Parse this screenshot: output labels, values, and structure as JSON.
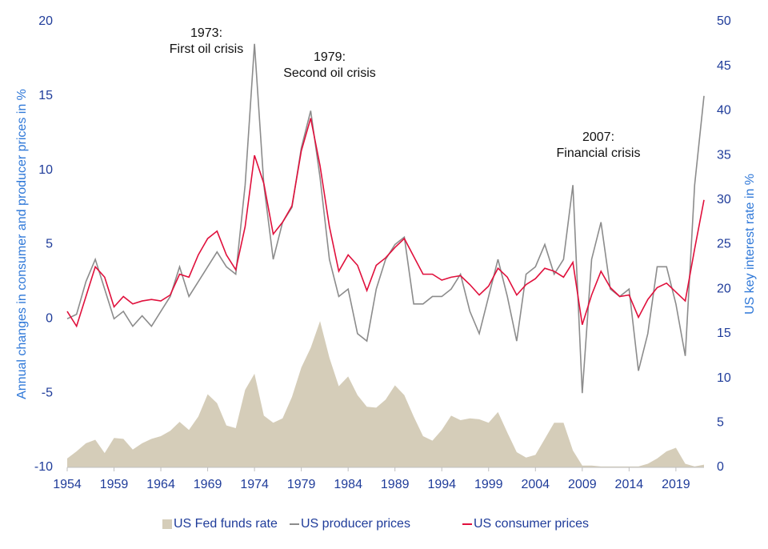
{
  "chart_data": {
    "type": "line",
    "y_label": "Annual changes in consumer and producer prices in %",
    "y2_label": "US key interest rate in %",
    "annotations": [
      [
        "1973:",
        "First oil crisis"
      ],
      [
        "1979:",
        "Second oil crisis"
      ],
      [
        "2007:",
        "Financial crisis"
      ]
    ],
    "x": [
      1954,
      1955,
      1956,
      1957,
      1958,
      1959,
      1960,
      1961,
      1962,
      1963,
      1964,
      1965,
      1966,
      1967,
      1968,
      1969,
      1970,
      1971,
      1972,
      1973,
      1974,
      1975,
      1976,
      1977,
      1978,
      1979,
      1980,
      1981,
      1982,
      1983,
      1984,
      1985,
      1986,
      1987,
      1988,
      1989,
      1990,
      1991,
      1992,
      1993,
      1994,
      1995,
      1996,
      1997,
      1998,
      1999,
      2000,
      2001,
      2002,
      2003,
      2004,
      2005,
      2006,
      2007,
      2008,
      2009,
      2010,
      2011,
      2012,
      2013,
      2014,
      2015,
      2016,
      2017,
      2018,
      2019,
      2020,
      2021,
      2022
    ],
    "series": [
      {
        "name": "US Fed funds rate",
        "type": "area",
        "axis": "y2",
        "color": "#d5cdb9",
        "values": [
          1.0,
          1.8,
          2.7,
          3.1,
          1.6,
          3.3,
          3.2,
          2.0,
          2.7,
          3.2,
          3.5,
          4.1,
          5.1,
          4.2,
          5.7,
          8.2,
          7.2,
          4.7,
          4.4,
          8.7,
          10.5,
          5.8,
          5.0,
          5.5,
          7.9,
          11.2,
          13.4,
          16.4,
          12.3,
          9.1,
          10.2,
          8.1,
          6.8,
          6.7,
          7.6,
          9.2,
          8.1,
          5.7,
          3.5,
          3.0,
          4.2,
          5.8,
          5.3,
          5.5,
          5.4,
          5.0,
          6.2,
          3.9,
          1.7,
          1.1,
          1.4,
          3.2,
          5.0,
          5.0,
          1.9,
          0.2,
          0.2,
          0.1,
          0.1,
          0.1,
          0.1,
          0.1,
          0.4,
          1.0,
          1.8,
          2.2,
          0.4,
          0.1,
          0.3
        ]
      },
      {
        "name": "US producer prices",
        "type": "line",
        "color": "#8c8c8c",
        "values": [
          0,
          0.3,
          2.5,
          4.0,
          2.0,
          0,
          0.5,
          -0.5,
          0.2,
          -0.5,
          0.5,
          1.5,
          3.5,
          1.5,
          2.5,
          3.5,
          4.5,
          3.5,
          3.0,
          9.0,
          18.5,
          9.0,
          4.0,
          6.5,
          7.5,
          11.5,
          14.0,
          9.5,
          4.0,
          1.5,
          2.0,
          -1.0,
          -1.5,
          2.0,
          4.0,
          5.0,
          5.5,
          1.0,
          1.0,
          1.5,
          1.5,
          2.0,
          3.0,
          0.5,
          -1.0,
          1.5,
          4.0,
          1.5,
          -1.5,
          3.0,
          3.5,
          5.0,
          3.0,
          4.0,
          9.0,
          -5.0,
          4.0,
          6.5,
          2.0,
          1.5,
          2.0,
          -3.5,
          -1.0,
          3.5,
          3.5,
          1.0,
          -2.5,
          9.0,
          15.0
        ]
      },
      {
        "name": "US consumer prices",
        "type": "line",
        "color": "#e0103c",
        "values": [
          0.5,
          -0.5,
          1.5,
          3.5,
          2.8,
          0.8,
          1.5,
          1.0,
          1.2,
          1.3,
          1.2,
          1.6,
          3.0,
          2.8,
          4.3,
          5.4,
          5.9,
          4.3,
          3.3,
          6.2,
          11.0,
          9.1,
          5.7,
          6.5,
          7.6,
          11.3,
          13.5,
          10.3,
          6.2,
          3.2,
          4.3,
          3.6,
          1.9,
          3.6,
          4.1,
          4.8,
          5.4,
          4.2,
          3.0,
          3.0,
          2.6,
          2.8,
          2.9,
          2.3,
          1.6,
          2.2,
          3.4,
          2.8,
          1.6,
          2.3,
          2.7,
          3.4,
          3.2,
          2.8,
          3.8,
          -0.4,
          1.6,
          3.2,
          2.1,
          1.5,
          1.6,
          0.1,
          1.3,
          2.1,
          2.4,
          1.8,
          1.2,
          4.7,
          8.0
        ]
      }
    ],
    "xlim": [
      1954,
      2022
    ],
    "xticks": [
      1954,
      1959,
      1964,
      1969,
      1974,
      1979,
      1984,
      1989,
      1994,
      1999,
      2004,
      2009,
      2014,
      2019
    ],
    "ylim": [
      -10,
      20
    ],
    "yticks": [
      -10,
      -5,
      0,
      5,
      10,
      15,
      20
    ],
    "y2lim": [
      0,
      50
    ],
    "y2ticks": [
      0,
      5,
      10,
      15,
      20,
      25,
      30,
      35,
      40,
      45,
      50
    ],
    "legend": "bottom"
  }
}
